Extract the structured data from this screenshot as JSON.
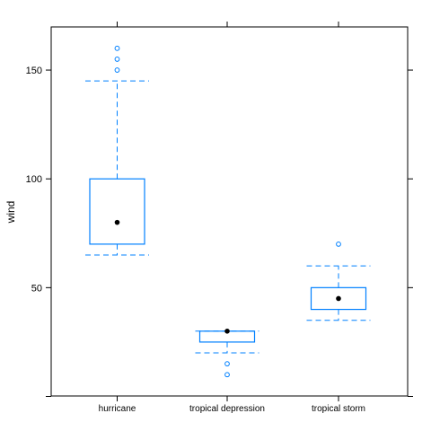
{
  "chart_data": {
    "type": "box",
    "ylabel": "wind",
    "xlabel": "",
    "title": "",
    "ylim": [
      0,
      170
    ],
    "yticks": [
      0,
      50,
      100,
      150
    ],
    "ytick_labels": [
      "",
      "50",
      "100",
      "150"
    ],
    "categories": [
      "hurricane",
      "tropical depression",
      "tropical storm"
    ],
    "boxes": [
      {
        "category": "hurricane",
        "whisker_low": 65,
        "q1": 70,
        "median": 80,
        "q3": 100,
        "whisker_high": 145,
        "outliers": [
          150,
          155,
          160
        ]
      },
      {
        "category": "tropical depression",
        "whisker_low": 20,
        "q1": 25,
        "median": 30,
        "q3": 30,
        "whisker_high": 30,
        "outliers": [
          15,
          10
        ]
      },
      {
        "category": "tropical storm",
        "whisker_low": 35,
        "q1": 40,
        "median": 45,
        "q3": 50,
        "whisker_high": 60,
        "outliers": [
          70
        ]
      }
    ],
    "colors": {
      "box": "#0080ff",
      "median": "#000000",
      "axis": "#000000"
    }
  }
}
